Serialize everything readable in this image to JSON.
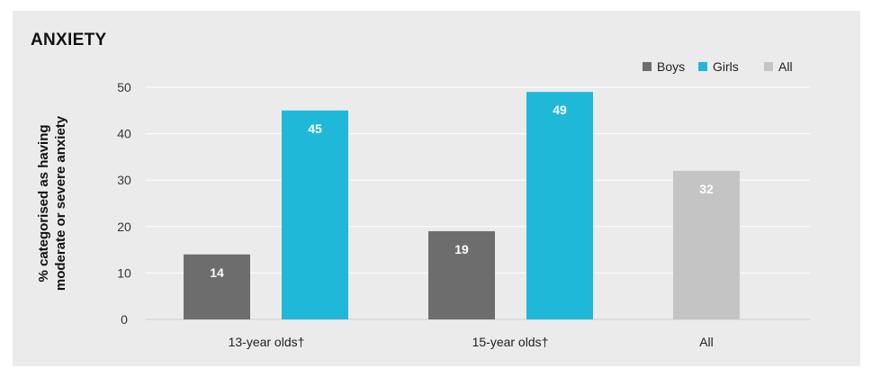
{
  "chart_data": {
    "type": "bar",
    "title": "ANXIETY",
    "ylabel_lines": [
      "% categorised as having",
      "moderate or severe anxiety"
    ],
    "xlabel": "",
    "ylim": [
      0,
      50
    ],
    "yticks": [
      0,
      10,
      20,
      30,
      40,
      50
    ],
    "grid": true,
    "legend_position": "top-right",
    "categories": [
      "13-year olds†",
      "15-year olds†",
      "All"
    ],
    "series": [
      {
        "name": "Boys",
        "color": "#6d6d6d",
        "values": [
          14,
          19,
          null
        ]
      },
      {
        "name": "Girls",
        "color": "#1fb8d9",
        "values": [
          45,
          49,
          null
        ]
      },
      {
        "name": "All",
        "color": "#c4c4c4",
        "values": [
          null,
          null,
          32
        ]
      }
    ]
  }
}
